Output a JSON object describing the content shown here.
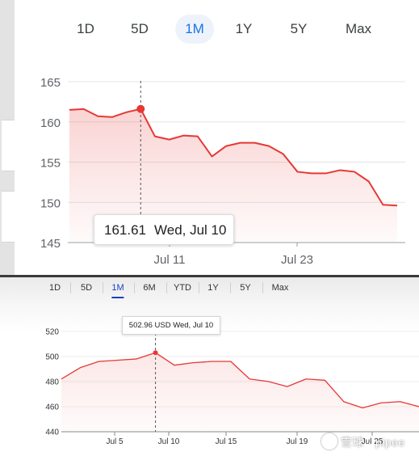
{
  "top_panel": {
    "range_tabs": [
      "1D",
      "5D",
      "1M",
      "1Y",
      "5Y",
      "Max"
    ],
    "active_tab": "1M",
    "tooltip": {
      "value": "161.61",
      "date": "Wed, Jul 10"
    }
  },
  "bottom_panel": {
    "range_tabs": [
      "1D",
      "5D",
      "1M",
      "6M",
      "YTD",
      "1Y",
      "5Y",
      "Max"
    ],
    "active_tab": "1M",
    "tooltip": {
      "text": "502.96 USD  Wed, Jul 10"
    }
  },
  "watermark": {
    "text": "雪球 · pipee"
  },
  "colors": {
    "line": "#e53935",
    "active_tab": "#1a73e8",
    "active_tab_bottom": "#1a3fbf"
  },
  "chart_data": [
    {
      "type": "area",
      "x_ticks": [
        "Jul 11",
        "Jul 23"
      ],
      "y_ticks": [
        145,
        150,
        155,
        160,
        165
      ],
      "ylim": [
        145,
        165
      ],
      "grid": true,
      "values": [
        161.5,
        161.6,
        160.7,
        160.6,
        161.2,
        161.61,
        158.2,
        157.8,
        158.3,
        158.2,
        155.7,
        157.0,
        157.4,
        157.4,
        157.0,
        156.0,
        153.8,
        153.6,
        153.6,
        154.0,
        153.8,
        152.6,
        149.7,
        149.6
      ],
      "highlight": {
        "index": 5,
        "value": 161.61,
        "date": "Wed, Jul 10"
      }
    },
    {
      "type": "area",
      "x_ticks": [
        "Jul 5",
        "Jul 10",
        "Jul 15",
        "Jul 19",
        "Jul 25"
      ],
      "y_ticks": [
        440,
        460,
        480,
        500,
        520
      ],
      "ylim": [
        440,
        525
      ],
      "grid": true,
      "values": [
        482,
        491,
        496,
        497,
        498,
        502.96,
        493,
        495,
        496,
        496,
        482,
        480,
        476,
        482,
        481,
        464,
        459,
        463,
        464,
        460
      ],
      "highlight": {
        "index": 5,
        "value": 502.96,
        "date": "Wed, Jul 10"
      }
    }
  ]
}
